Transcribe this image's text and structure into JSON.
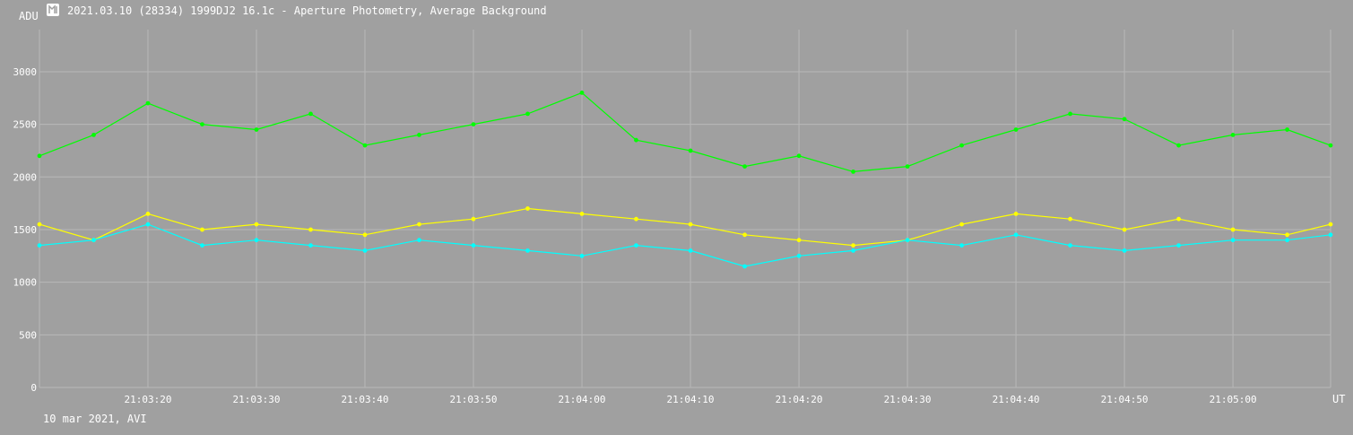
{
  "header": {
    "title": "2021.03.10 (28334) 1999DJ2 16.1c - Aperture Photometry, Average Background",
    "icon": "lightcurve-app-icon"
  },
  "footer": {
    "note": "10 mar 2021, AVI"
  },
  "colors": {
    "background": "#a0a0a0",
    "grid": "#b8b8b8",
    "text": "#ffffff",
    "series_green": "#00ff00",
    "series_yellow": "#ffff00",
    "series_cyan": "#00ffff"
  },
  "chart_data": {
    "type": "line",
    "title": "2021.03.10 (28334) 1999DJ2 16.1c - Aperture Photometry, Average Background",
    "xlabel": "UT",
    "ylabel": "ADU",
    "ylim": [
      0,
      3400
    ],
    "xlim": [
      "21:03:10",
      "21:05:09"
    ],
    "yticks": [
      0,
      500,
      1000,
      1500,
      2000,
      2500,
      3000
    ],
    "xticks": [
      "21:03:20",
      "21:03:30",
      "21:03:40",
      "21:03:50",
      "21:04:00",
      "21:04:10",
      "21:04:20",
      "21:04:30",
      "21:04:40",
      "21:04:50",
      "21:05:00"
    ],
    "grid": true,
    "series": [
      {
        "color": "#00ff00",
        "x": [
          "21:03:10",
          "21:03:15",
          "21:03:20",
          "21:03:25",
          "21:03:30",
          "21:03:35",
          "21:03:40",
          "21:03:45",
          "21:03:50",
          "21:03:55",
          "21:04:00",
          "21:04:05",
          "21:04:10",
          "21:04:15",
          "21:04:20",
          "21:04:25",
          "21:04:30",
          "21:04:35",
          "21:04:40",
          "21:04:45",
          "21:04:50",
          "21:04:55",
          "21:05:00",
          "21:05:05",
          "21:05:09"
        ],
        "values": [
          2200,
          2400,
          2700,
          2500,
          2450,
          2600,
          2300,
          2400,
          2500,
          2600,
          2800,
          2350,
          2250,
          2100,
          2200,
          2050,
          2100,
          2300,
          2450,
          2600,
          2550,
          2300,
          2400,
          2450,
          2300
        ]
      },
      {
        "color": "#ffff00",
        "x": [
          "21:03:10",
          "21:03:15",
          "21:03:20",
          "21:03:25",
          "21:03:30",
          "21:03:35",
          "21:03:40",
          "21:03:45",
          "21:03:50",
          "21:03:55",
          "21:04:00",
          "21:04:05",
          "21:04:10",
          "21:04:15",
          "21:04:20",
          "21:04:25",
          "21:04:30",
          "21:04:35",
          "21:04:40",
          "21:04:45",
          "21:04:50",
          "21:04:55",
          "21:05:00",
          "21:05:05",
          "21:05:09"
        ],
        "values": [
          1550,
          1400,
          1650,
          1500,
          1550,
          1500,
          1450,
          1550,
          1600,
          1700,
          1650,
          1600,
          1550,
          1450,
          1400,
          1350,
          1400,
          1550,
          1650,
          1600,
          1500,
          1600,
          1500,
          1450,
          1550
        ]
      },
      {
        "color": "#00ffff",
        "x": [
          "21:03:10",
          "21:03:15",
          "21:03:20",
          "21:03:25",
          "21:03:30",
          "21:03:35",
          "21:03:40",
          "21:03:45",
          "21:03:50",
          "21:03:55",
          "21:04:00",
          "21:04:05",
          "21:04:10",
          "21:04:15",
          "21:04:20",
          "21:04:25",
          "21:04:30",
          "21:04:35",
          "21:04:40",
          "21:04:45",
          "21:04:50",
          "21:04:55",
          "21:05:00",
          "21:05:05",
          "21:05:09"
        ],
        "values": [
          1350,
          1400,
          1550,
          1350,
          1400,
          1350,
          1300,
          1400,
          1350,
          1300,
          1250,
          1350,
          1300,
          1150,
          1250,
          1300,
          1400,
          1350,
          1450,
          1350,
          1300,
          1350,
          1400,
          1400,
          1450
        ]
      }
    ]
  }
}
